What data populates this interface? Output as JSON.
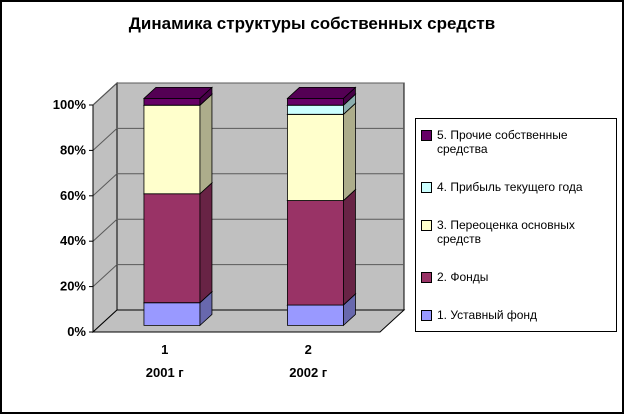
{
  "chart_data": {
    "type": "bar",
    "subtype": "3d-stacked-100-percent-column",
    "title": "Динамика структуры собственных средств",
    "categories": [
      "1",
      "2"
    ],
    "category_sublabels": [
      "2001 г",
      "2002 г"
    ],
    "series": [
      {
        "name": "1. Уставный фонд",
        "color": "#9999FF",
        "values": [
          10,
          9
        ]
      },
      {
        "name": "2. Фонды",
        "color": "#993366",
        "values": [
          48,
          46
        ]
      },
      {
        "name": "3. Переоценка основных средств",
        "color": "#FFFFCC",
        "values": [
          39,
          38
        ]
      },
      {
        "name": "4. Прибыль текущего года",
        "color": "#CCFFFF",
        "values": [
          0,
          4
        ]
      },
      {
        "name": "5. Прочие собственные средства",
        "color": "#660066",
        "values": [
          3,
          3
        ]
      }
    ],
    "y_axis": {
      "min": 0,
      "max": 100,
      "step": 20,
      "tick_labels": [
        "0%",
        "20%",
        "40%",
        "60%",
        "80%",
        "100%"
      ],
      "format": "percent"
    },
    "legend": {
      "position": "right",
      "items": [
        "5. Прочие собственные средства",
        "4. Прибыль текущего года",
        "3. Переоценка основных средств",
        "2. Фонды",
        "1. Уставный фонд"
      ]
    },
    "colors": {
      "wall": "#C0C0C0",
      "gridline": "#5A5A5A",
      "background": "#FFFFFF",
      "border": "#000000"
    }
  }
}
